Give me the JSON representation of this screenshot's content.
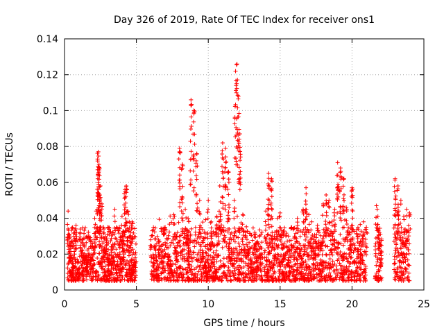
{
  "chart_data": {
    "type": "scatter",
    "title": "Day 326 of 2019, Rate Of TEC Index for receiver ons1",
    "xlabel": "GPS time / hours",
    "ylabel": "ROTI / TECUs",
    "xlim": [
      0,
      25
    ],
    "ylim": [
      0,
      0.14
    ],
    "xticks": [
      0,
      5,
      10,
      15,
      20,
      25
    ],
    "yticks": [
      0,
      0.02,
      0.04,
      0.06,
      0.08,
      0.1,
      0.12,
      0.14
    ],
    "xtick_labels": [
      "0",
      "5",
      "10",
      "15",
      "20",
      "25"
    ],
    "ytick_labels": [
      "0",
      "0.02",
      "0.04",
      "0.06",
      "0.08",
      "0.1",
      "0.12",
      "0.14"
    ],
    "grid": true,
    "marker": "+",
    "colors": {
      "points": "#ff0000",
      "grid": "#a0a0a0",
      "axes": "#000000"
    },
    "series": [
      {
        "name": "ROTI",
        "x": [
          0.25,
          0.3,
          0.35,
          0.4,
          0.5,
          0.6,
          0.7,
          0.8,
          0.9,
          1.0,
          1.1,
          1.2,
          1.3,
          1.4,
          1.5,
          1.6,
          1.7,
          1.8,
          1.9,
          2.0,
          2.1,
          2.2,
          2.3,
          2.35,
          2.4,
          2.45,
          2.5,
          2.6,
          2.7,
          2.8,
          2.9,
          3.0,
          3.1,
          3.2,
          3.3,
          3.4,
          3.5,
          3.6,
          3.7,
          3.8,
          3.9,
          4.0,
          4.1,
          4.2,
          4.3,
          4.4,
          4.5,
          4.6,
          4.7,
          4.8,
          4.9,
          6.0,
          6.2,
          6.4,
          6.6,
          6.8,
          7.0,
          7.2,
          7.4,
          7.6,
          7.8,
          8.0,
          8.2,
          8.4,
          8.6,
          8.8,
          9.0,
          9.2,
          9.4,
          9.6,
          9.8,
          10.0,
          10.2,
          10.4,
          10.6,
          10.8,
          11.0,
          11.2,
          11.4,
          11.6,
          11.8,
          11.9,
          12.0,
          12.1,
          12.2,
          12.4,
          12.6,
          12.8,
          13.0,
          13.2,
          13.4,
          13.6,
          14.0,
          14.2,
          14.4,
          14.6,
          14.8,
          15.0,
          15.2,
          15.4,
          15.6,
          15.8,
          16.0,
          16.2,
          16.4,
          16.6,
          16.8,
          17.0,
          17.2,
          17.4,
          17.6,
          17.8,
          18.0,
          18.2,
          18.4,
          18.6,
          18.8,
          19.0,
          19.2,
          19.4,
          19.6,
          19.8,
          20.0,
          20.2,
          20.4,
          20.6,
          20.8,
          21.0,
          21.7,
          21.8,
          21.9,
          22.0,
          23.0,
          23.2,
          23.4,
          23.6,
          23.8,
          24.0
        ],
        "y": [
          0.044,
          0.031,
          0.025,
          0.018,
          0.015,
          0.013,
          0.02,
          0.036,
          0.016,
          0.012,
          0.034,
          0.022,
          0.018,
          0.025,
          0.019,
          0.015,
          0.03,
          0.018,
          0.026,
          0.02,
          0.04,
          0.044,
          0.073,
          0.077,
          0.07,
          0.053,
          0.058,
          0.048,
          0.035,
          0.024,
          0.028,
          0.018,
          0.02,
          0.016,
          0.024,
          0.018,
          0.045,
          0.014,
          0.02,
          0.035,
          0.03,
          0.041,
          0.022,
          0.056,
          0.058,
          0.044,
          0.038,
          0.025,
          0.038,
          0.014,
          0.02,
          0.028,
          0.018,
          0.012,
          0.027,
          0.022,
          0.035,
          0.02,
          0.016,
          0.042,
          0.03,
          0.079,
          0.07,
          0.045,
          0.04,
          0.106,
          0.1,
          0.076,
          0.05,
          0.022,
          0.016,
          0.05,
          0.038,
          0.025,
          0.041,
          0.058,
          0.082,
          0.079,
          0.066,
          0.028,
          0.05,
          0.122,
          0.126,
          0.108,
          0.087,
          0.042,
          0.03,
          0.022,
          0.016,
          0.025,
          0.018,
          0.02,
          0.044,
          0.065,
          0.062,
          0.03,
          0.04,
          0.043,
          0.025,
          0.03,
          0.018,
          0.035,
          0.03,
          0.04,
          0.025,
          0.045,
          0.057,
          0.042,
          0.038,
          0.03,
          0.036,
          0.025,
          0.048,
          0.053,
          0.05,
          0.038,
          0.045,
          0.071,
          0.068,
          0.062,
          0.046,
          0.032,
          0.057,
          0.025,
          0.03,
          0.02,
          0.038,
          0.035,
          0.047,
          0.041,
          0.032,
          0.025,
          0.062,
          0.058,
          0.05,
          0.041,
          0.045,
          0.043
        ],
        "baseline_band": [
          0.005,
          0.035
        ],
        "coverage_hours": [
          [
            0.2,
            5.0
          ],
          [
            6.0,
            13.8
          ],
          [
            13.9,
            21.0
          ],
          [
            21.6,
            22.1
          ],
          [
            22.9,
            24.0
          ]
        ]
      }
    ]
  }
}
